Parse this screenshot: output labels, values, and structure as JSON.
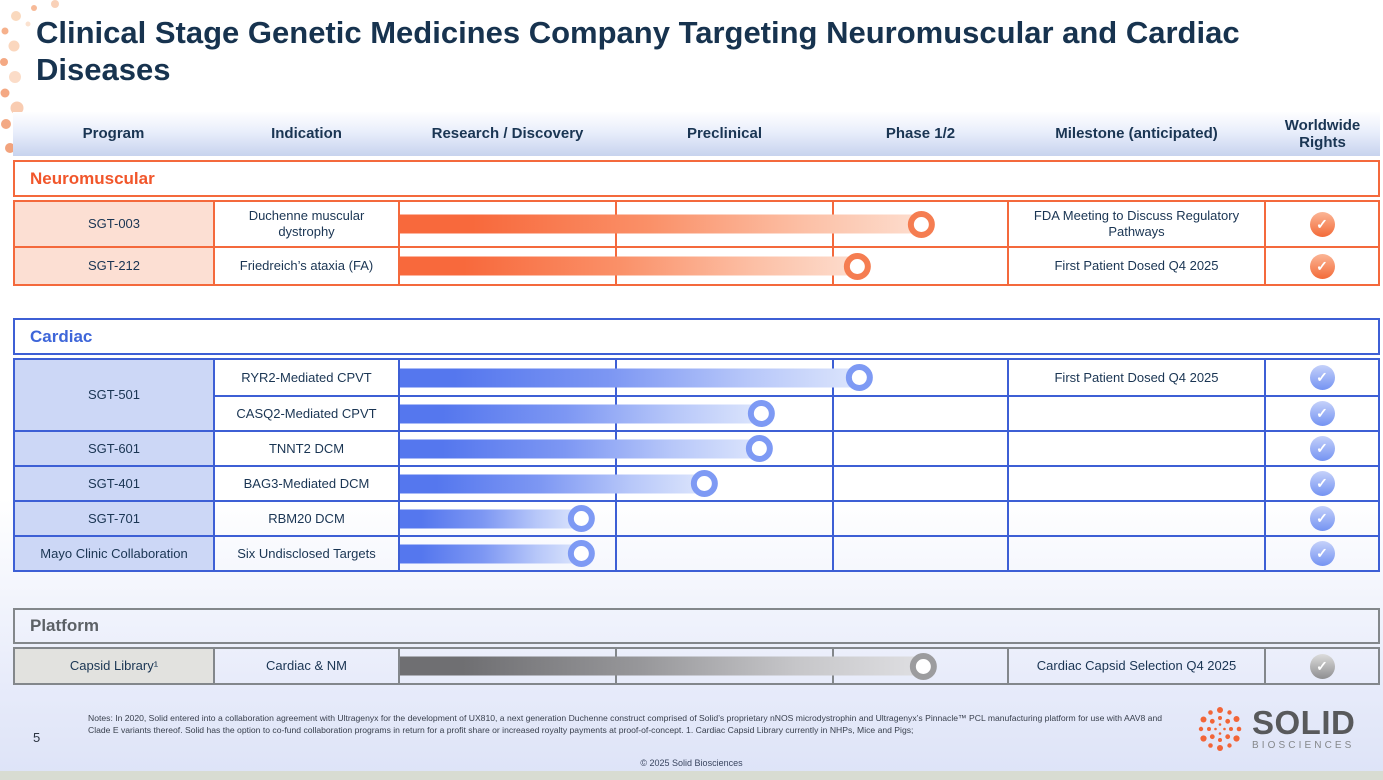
{
  "title": "Clinical Stage Genetic Medicines Company Targeting Neuromuscular and Cardiac Diseases",
  "columns": [
    "Program",
    "Indication",
    "Research / Discovery",
    "Preclinical",
    "Phase 1/2",
    "Milestone (anticipated)",
    "Worldwide Rights"
  ],
  "ui": {
    "check_glyph": "✓"
  },
  "accents": {
    "neuromuscular": "#F4693C",
    "cardiac": "#3D5FD5",
    "platform": "#83878B",
    "title_navy": "#17334F"
  },
  "sections": {
    "neuromuscular": {
      "label": "Neuromuscular",
      "rows": [
        {
          "program": "SGT-003",
          "indication": "Duchenne muscular dystrophy",
          "progress_pct": 85.6,
          "milestone": "FDA Meeting to Discuss Regulatory Pathways",
          "worldwide_rights": true
        },
        {
          "program": "SGT-212",
          "indication": "Friedreich’s ataxia (FA)",
          "progress_pct": 75.2,
          "milestone": "First Patient Dosed Q4 2025",
          "worldwide_rights": true
        }
      ]
    },
    "cardiac": {
      "label": "Cardiac",
      "rows": [
        {
          "program": "SGT-501",
          "indication": "RYR2-Mediated CPVT",
          "progress_pct": 75.5,
          "milestone": "First Patient Dosed Q4 2025",
          "worldwide_rights": true
        },
        {
          "program": "SGT-501",
          "indication": "CASQ2-Mediated CPVT",
          "progress_pct": 59.3,
          "milestone": "",
          "worldwide_rights": true
        },
        {
          "program": "SGT-601",
          "indication": "TNNT2 DCM",
          "progress_pct": 59.0,
          "milestone": "",
          "worldwide_rights": true
        },
        {
          "program": "SGT-401",
          "indication": "BAG3-Mediated DCM",
          "progress_pct": 49.9,
          "milestone": "",
          "worldwide_rights": true
        },
        {
          "program": "SGT-701",
          "indication": "RBM20 DCM",
          "progress_pct": 29.7,
          "milestone": "",
          "worldwide_rights": true
        },
        {
          "program": "Mayo Clinic Collaboration",
          "indication": "Six Undisclosed Targets",
          "progress_pct": 29.7,
          "milestone": "",
          "worldwide_rights": true
        }
      ]
    },
    "platform": {
      "label": "Platform",
      "rows": [
        {
          "program": "Capsid Library¹",
          "indication": "Cardiac & NM",
          "progress_pct": 86.0,
          "milestone": "Cardiac Capsid Selection Q4 2025",
          "worldwide_rights": true
        }
      ]
    }
  },
  "footer": {
    "page_number": "5",
    "notes": "Notes: In 2020, Solid entered into a collaboration agreement with Ultragenyx for the development of UX810, a next generation Duchenne construct comprised of Solid’s proprietary nNOS microdystrophin and Ultragenyx’s Pinnacle™ PCL manufacturing platform for use with AAV8 and Clade E variants thereof. Solid has the option to co-fund collaboration programs in return for a profit share or increased royalty payments at proof-of-concept. 1. Cardiac Capsid Library currently in NHPs, Mice and Pigs;",
    "copyright": "© 2025 Solid Biosciences",
    "logo_primary": "SOLID",
    "logo_secondary": "BIOSCIENCES"
  }
}
